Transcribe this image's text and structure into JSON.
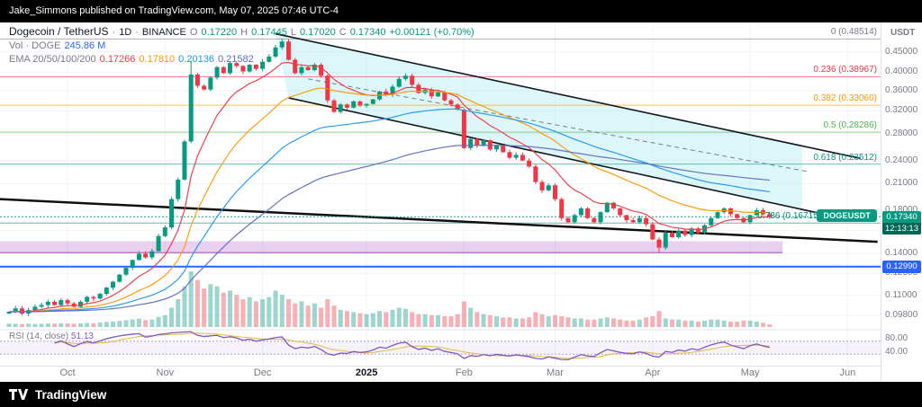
{
  "attribution": {
    "text": "Jake_Simmons published on TradingView.com, May 07, 2025 07:46 UTC-4"
  },
  "header": {
    "symbol": "Dogecoin / TetherUS",
    "separator": "·",
    "interval": "1D",
    "exchange": "BINANCE",
    "ohlc": {
      "o_label": "O",
      "o": "0.17220",
      "h_label": "H",
      "h": "0.17445",
      "l_label": "L",
      "l": "0.17020",
      "c_label": "C",
      "c": "0.17340",
      "change": "+0.00121 (+0.70%)"
    },
    "volume_row": {
      "label": "Vol · DOGE",
      "value": "245.86 M"
    },
    "ema_row": {
      "label": "EMA 20/50/100/200",
      "values": [
        "0.17266",
        "0.17810",
        "0.20136",
        "0.21582"
      ],
      "colors": [
        "#f23645",
        "#ff9800",
        "#2196f3",
        "#5c6bc0"
      ]
    }
  },
  "price_axis": {
    "currency": "USDT",
    "ticks": [
      "0.45000",
      "0.40000",
      "0.36000",
      "0.32000",
      "0.28000",
      "0.24000",
      "0.21000",
      "0.18000",
      "0.16000",
      "0.14000",
      "0.12500",
      "0.11000",
      "0.09800"
    ],
    "tick_values": [
      0.45,
      0.4,
      0.36,
      0.32,
      0.28,
      0.24,
      0.21,
      0.18,
      0.16,
      0.14,
      0.125,
      0.11,
      0.098
    ]
  },
  "badges": {
    "symbol_label": "DOGEUSDT",
    "price": "0.17340",
    "countdown": "12:13:13",
    "price_color": "#089981",
    "support_price": "0.12990",
    "support_color": "#2962ff"
  },
  "fib_levels": [
    {
      "label": "0 (0.48514)",
      "value": 0.48514,
      "color": "#787b86"
    },
    {
      "label": "0.236 (0.38967)",
      "value": 0.38967,
      "color": "#f23645"
    },
    {
      "label": "0.382 (0.33060)",
      "value": 0.3306,
      "color": "#ff9800"
    },
    {
      "label": "0.5 (0.28286)",
      "value": 0.28286,
      "color": "#4caf50"
    },
    {
      "label": "0.618 (0.23512)",
      "value": 0.23512,
      "color": "#089981"
    },
    {
      "label": "0.786 (0.16715)",
      "value": 0.16715,
      "color": "#00897b"
    }
  ],
  "time_axis": {
    "labels": [
      {
        "text": "Oct",
        "i": 9
      },
      {
        "text": "Nov",
        "i": 24
      },
      {
        "text": "Dec",
        "i": 39
      },
      {
        "text": "2025",
        "i": 55,
        "year": true
      },
      {
        "text": "Feb",
        "i": 70
      },
      {
        "text": "Mar",
        "i": 84
      },
      {
        "text": "Apr",
        "i": 99
      },
      {
        "text": "May",
        "i": 114
      },
      {
        "text": "Jun",
        "i": 129
      }
    ]
  },
  "rsi_pane": {
    "label": "RSI (14, close)",
    "value": "51.13",
    "period_display": 14,
    "levels": [
      "80.00",
      "40.00"
    ],
    "level_values": [
      80,
      40
    ],
    "band": [
      30,
      70
    ],
    "line_color": "#7e57c2",
    "ma_color": "#e3b93c"
  },
  "footer": {
    "brand": "TradingView"
  },
  "chart_data": {
    "type": "candlestick",
    "symbol": "DOGEUSDT",
    "exchange": "BINANCE",
    "interval": "1D",
    "days_per_candle": 2,
    "scale": "log",
    "price_range": [
      0.0935,
      0.52
    ],
    "first_open": 0.099,
    "last_close": 0.1734,
    "closes": [
      0.1,
      0.102,
      0.099,
      0.101,
      0.103,
      0.104,
      0.106,
      0.104,
      0.107,
      0.105,
      0.103,
      0.106,
      0.109,
      0.108,
      0.111,
      0.115,
      0.119,
      0.124,
      0.129,
      0.135,
      0.14,
      0.137,
      0.142,
      0.155,
      0.163,
      0.192,
      0.215,
      0.268,
      0.395,
      0.37,
      0.362,
      0.388,
      0.412,
      0.398,
      0.422,
      0.415,
      0.402,
      0.418,
      0.408,
      0.425,
      0.438,
      0.462,
      0.478,
      0.43,
      0.398,
      0.412,
      0.405,
      0.418,
      0.392,
      0.34,
      0.318,
      0.332,
      0.326,
      0.338,
      0.33,
      0.333,
      0.342,
      0.358,
      0.352,
      0.368,
      0.385,
      0.392,
      0.372,
      0.355,
      0.362,
      0.348,
      0.356,
      0.34,
      0.332,
      0.322,
      0.258,
      0.272,
      0.262,
      0.27,
      0.256,
      0.262,
      0.252,
      0.244,
      0.248,
      0.24,
      0.232,
      0.212,
      0.202,
      0.208,
      0.192,
      0.172,
      0.168,
      0.175,
      0.182,
      0.172,
      0.168,
      0.178,
      0.188,
      0.182,
      0.175,
      0.17,
      0.168,
      0.172,
      0.166,
      0.152,
      0.145,
      0.158,
      0.154,
      0.16,
      0.156,
      0.162,
      0.158,
      0.165,
      0.172,
      0.178,
      0.182,
      0.176,
      0.172,
      0.168,
      0.175,
      0.18,
      0.176,
      0.173
    ],
    "volumes_millions": [
      320,
      300,
      280,
      310,
      290,
      300,
      340,
      320,
      360,
      330,
      310,
      350,
      380,
      360,
      420,
      480,
      520,
      580,
      640,
      720,
      780,
      650,
      700,
      950,
      1100,
      1800,
      2600,
      3800,
      5200,
      4400,
      3600,
      4000,
      3800,
      3200,
      3400,
      3000,
      2600,
      2800,
      2400,
      2600,
      2800,
      3400,
      3000,
      2600,
      2200,
      2400,
      2000,
      2200,
      1800,
      2600,
      2000,
      1600,
      1500,
      1400,
      1300,
      1200,
      1300,
      1500,
      1400,
      1600,
      1800,
      1700,
      1400,
      1200,
      1200,
      1100,
      1100,
      1000,
      1000,
      1200,
      2400,
      1800,
      1400,
      1200,
      1100,
      1000,
      900,
      900,
      800,
      800,
      900,
      1400,
      1200,
      1000,
      1100,
      1000,
      900,
      800,
      800,
      700,
      700,
      800,
      900,
      800,
      700,
      600,
      600,
      700,
      900,
      1000,
      1500,
      800,
      700,
      700,
      600,
      600,
      500,
      600,
      700,
      700,
      600,
      500,
      500,
      600,
      600,
      500,
      400,
      246
    ],
    "wick_overrides": {
      "28": {
        "high": 0.428
      },
      "42": {
        "high": 0.48514
      },
      "100": {
        "low": 0.1408
      }
    },
    "ema_periods_display": [
      20,
      50,
      100,
      200
    ],
    "ema_colors": [
      "#f23645",
      "#ff9800",
      "#2196f3",
      "#5c6bc0"
    ],
    "up_color": "#089981",
    "down_color": "#f23645",
    "support_line": 0.1299,
    "supply_zone": [
      0.1408,
      0.1505
    ],
    "supply_zone_color": "#9c27b0",
    "last_price": 0.1734,
    "trendlines": {
      "channel_top": {
        "i1": 41,
        "p1": 0.5,
        "i2": 131,
        "p2": 0.243
      },
      "channel_bottom": {
        "i1": 43,
        "p1": 0.345,
        "i2": 126,
        "p2": 0.175
      },
      "dashed_mid": {
        "i1": 46,
        "p1": 0.385,
        "i2": 123,
        "p2": 0.225
      },
      "macro_line": {
        "i1": -1.4,
        "p1": 0.192,
        "i2": 133.6,
        "p2": 0.15
      }
    },
    "channel_fill": {
      "from_i": 43,
      "to_i": 122,
      "color": "rgba(178,235,242,0.45)"
    }
  }
}
